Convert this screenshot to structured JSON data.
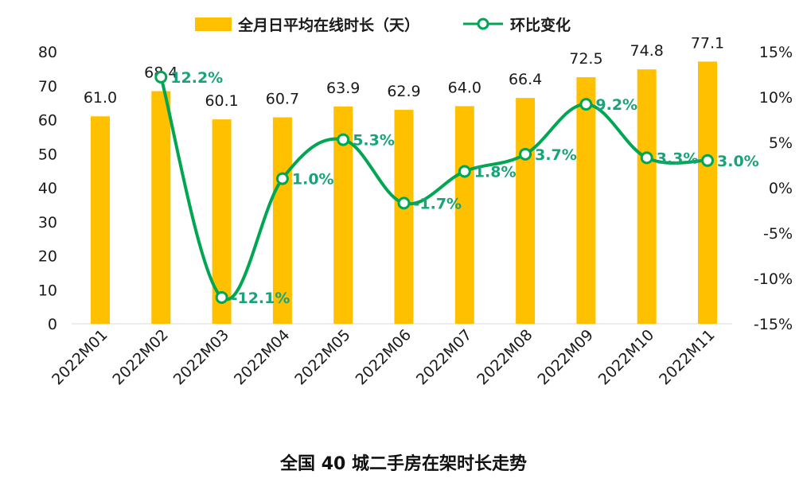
{
  "chart_data": {
    "type": "bar+line",
    "title": "全国 40 城二手房在架时长走势",
    "categories": [
      "2022M01",
      "2022M02",
      "2022M03",
      "2022M04",
      "2022M05",
      "2022M06",
      "2022M07",
      "2022M08",
      "2022M09",
      "2022M10",
      "2022M11"
    ],
    "series": [
      {
        "name": "全月日平均在线时长（天）",
        "type": "bar",
        "axis": "left",
        "values": [
          61.0,
          68.4,
          60.1,
          60.7,
          63.9,
          62.9,
          64.0,
          66.4,
          72.5,
          74.8,
          77.1
        ],
        "labels": [
          "61.0",
          "68.4",
          "60.1",
          "60.7",
          "63.9",
          "62.9",
          "64.0",
          "66.4",
          "72.5",
          "74.8",
          "77.1"
        ]
      },
      {
        "name": "环比变化",
        "type": "line",
        "axis": "right",
        "values": [
          null,
          12.2,
          -12.1,
          1.0,
          5.3,
          -1.7,
          1.8,
          3.7,
          9.2,
          3.3,
          3.0
        ],
        "labels": [
          null,
          "12.2%",
          "-12.1%",
          "1.0%",
          "5.3%",
          "-1.7%",
          "1.8%",
          "3.7%",
          "9.2%",
          "3.3%",
          "3.0%"
        ]
      }
    ],
    "y_left": {
      "range": [
        0,
        80
      ],
      "ticks": [
        "0",
        "10",
        "20",
        "30",
        "40",
        "50",
        "60",
        "70",
        "80"
      ]
    },
    "y_right": {
      "range": [
        -15,
        15
      ],
      "ticks": [
        "-15%",
        "-10%",
        "-5%",
        "0%",
        "5%",
        "10%",
        "15%"
      ]
    },
    "legend_position": "top-center",
    "colors": {
      "bar": "#FFC000",
      "line": "#00A651",
      "line_label": "#1AA37A"
    }
  }
}
